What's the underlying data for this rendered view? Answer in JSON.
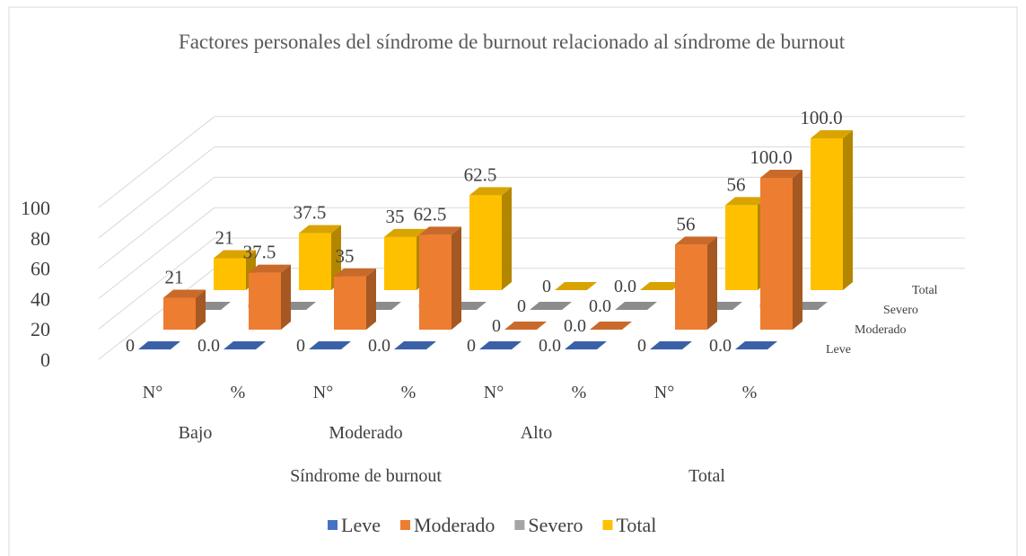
{
  "chart_data": {
    "type": "bar3d",
    "title": "Factores personales del síndrome de burnout relacionado al síndrome de burnout",
    "categories": [
      "N°",
      "%",
      "N°",
      "%",
      "N°",
      "%",
      "N°",
      "%"
    ],
    "level2": [
      "Bajo",
      null,
      "Moderado",
      null,
      "Alto",
      null,
      null,
      null
    ],
    "level3": [
      "Síndrome de burnout",
      null,
      null,
      null,
      null,
      null,
      "Total",
      null
    ],
    "series": [
      {
        "name": "Leve",
        "color": "#4472c4",
        "values": [
          0,
          0,
          0,
          0,
          0,
          0,
          0,
          0
        ],
        "value_labels": [
          "0",
          "0.0",
          "0",
          "0.0",
          "0",
          "0.0",
          "0",
          "0.0"
        ]
      },
      {
        "name": "Moderado",
        "color": "#ed7d31",
        "values": [
          21,
          37.5,
          35,
          62.5,
          0,
          0,
          56,
          100
        ],
        "value_labels": [
          "21",
          "37.5",
          "35",
          "62.5",
          "0",
          "0.0",
          "56",
          "100.0"
        ]
      },
      {
        "name": "Severo",
        "color": "#a5a5a5",
        "values": [
          0,
          0,
          0,
          0,
          0,
          0,
          0,
          0
        ],
        "value_labels": [
          "0",
          "0.0",
          "0",
          "0.0",
          "0",
          "0.0",
          "0",
          "0.0"
        ]
      },
      {
        "name": "Total",
        "color": "#ffc000",
        "values": [
          21,
          37.5,
          35,
          62.5,
          0,
          0,
          56,
          100
        ],
        "value_labels": [
          "21",
          "37.5",
          "35",
          "62.5",
          "0",
          "0.0",
          "56",
          "100.0"
        ]
      }
    ],
    "ylim": [
      0,
      100
    ],
    "yticks": [
      0,
      20,
      40,
      60,
      80,
      100
    ],
    "grid": true,
    "legend": "bottom"
  }
}
